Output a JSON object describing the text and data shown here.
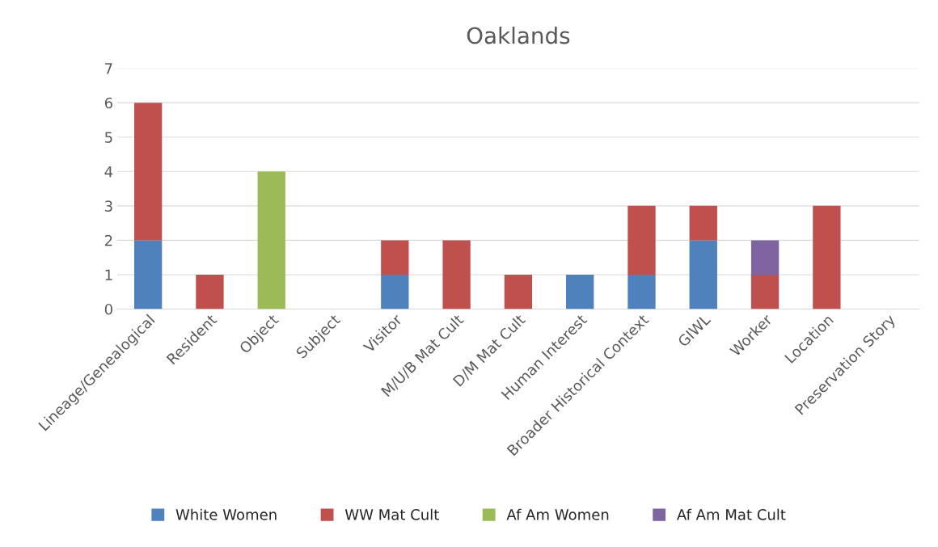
{
  "chart_data": {
    "type": "bar",
    "title": "Oaklands",
    "stacked": true,
    "categories": [
      "Lineage/Genealogical",
      "Resident",
      "Object",
      "Subject",
      "Visitor",
      "M/U/B Mat Cult",
      "D/M Mat Cult",
      "Human Interest",
      "Broader Historical Context",
      "GIWL",
      "Worker",
      "Location",
      "Preservation Story"
    ],
    "series": [
      {
        "name": "White Women",
        "color": "#4f81bd",
        "values": [
          2,
          null,
          null,
          null,
          1,
          null,
          null,
          1,
          1,
          2,
          null,
          null,
          null
        ]
      },
      {
        "name": "WW Mat Cult",
        "color": "#c0504d",
        "values": [
          4,
          1,
          null,
          null,
          1,
          2,
          1,
          null,
          2,
          1,
          1,
          3,
          null
        ]
      },
      {
        "name": "Af Am Women",
        "color": "#9bbb59",
        "values": [
          null,
          null,
          4,
          null,
          null,
          null,
          null,
          null,
          null,
          null,
          null,
          null,
          null
        ]
      },
      {
        "name": "Af Am Mat Cult",
        "color": "#8064a2",
        "values": [
          null,
          null,
          null,
          null,
          null,
          null,
          null,
          null,
          null,
          null,
          1,
          null,
          null
        ]
      }
    ],
    "ylim": [
      0,
      7
    ],
    "yticks": [
      0,
      1,
      2,
      3,
      4,
      5,
      6,
      7
    ],
    "grid": "y",
    "legend": "bottom"
  }
}
